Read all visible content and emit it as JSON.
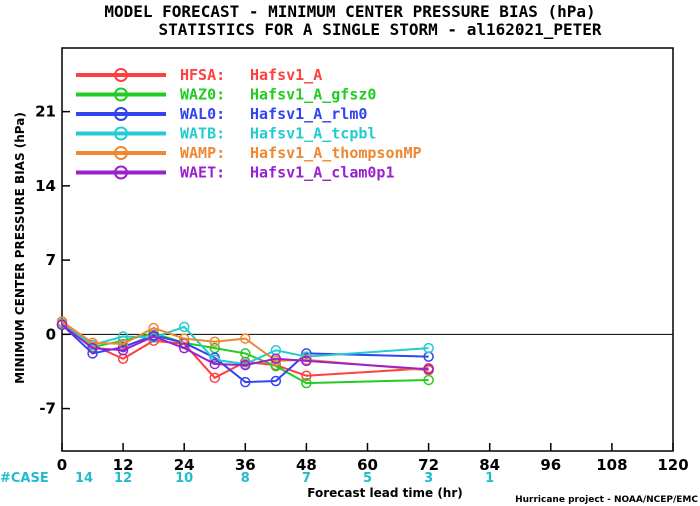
{
  "chart_data": {
    "type": "line",
    "title": "MODEL FORECAST - MINIMUM CENTER PRESSURE BIAS (hPa)",
    "subtitle": "STATISTICS FOR A SINGLE STORM - al162021_PETER",
    "xlabel": "Forecast lead time (hr)",
    "ylabel": "MINIMUM CENTER PRESSURE BIAS (hPa)",
    "xlim": [
      0,
      120
    ],
    "ylim": [
      -11,
      27
    ],
    "xticks": [
      0,
      12,
      24,
      36,
      48,
      60,
      72,
      84,
      96,
      108,
      120
    ],
    "yticks": [
      -7,
      0,
      7,
      14,
      21
    ],
    "zero_line": true,
    "legend_position": "top-left",
    "x": [
      0,
      6,
      12,
      18,
      24,
      30,
      36,
      42,
      48,
      72
    ],
    "series": [
      {
        "name": "HFSA:",
        "label": "Hafsv1_A",
        "color": "#ff4040",
        "values": [
          1.2,
          -1.0,
          -2.3,
          -0.6,
          -0.9,
          -4.1,
          -2.6,
          -2.9,
          -3.9,
          -3.2
        ]
      },
      {
        "name": "WAZ0:",
        "label": "Hafsv1_A_gfsz0",
        "color": "#22cc22",
        "values": [
          0.9,
          -1.2,
          -0.6,
          0.1,
          -0.8,
          -1.3,
          -1.8,
          -3.0,
          -4.6,
          -4.3
        ]
      },
      {
        "name": "WAL0:",
        "label": "Hafsv1_A_rlm0",
        "color": "#3344ee",
        "values": [
          0.9,
          -1.8,
          -1.2,
          -0.1,
          -0.8,
          -2.2,
          -4.5,
          -4.4,
          -1.8,
          -2.1
        ]
      },
      {
        "name": "WATB:",
        "label": "Hafsv1_A_tcpbl",
        "color": "#22ccd0",
        "values": [
          1.0,
          -1.0,
          -0.2,
          -0.3,
          0.7,
          -2.4,
          -2.8,
          -1.5,
          -2.1,
          -1.3
        ]
      },
      {
        "name": "WAMP:",
        "label": "Hafsv1_A_thompsonMP",
        "color": "#ee8833",
        "values": [
          1.2,
          -0.8,
          -0.9,
          0.6,
          -0.4,
          -0.7,
          -0.4,
          -2.5,
          -2.4,
          -3.4
        ]
      },
      {
        "name": "WAET:",
        "label": "Hafsv1_A_clam0p1",
        "color": "#9922cc",
        "values": [
          0.9,
          -1.3,
          -1.5,
          -0.2,
          -1.3,
          -2.8,
          -2.9,
          -2.3,
          -2.5,
          -3.3
        ]
      }
    ],
    "cases": {
      "label": "#CASE",
      "x": [
        0,
        12,
        24,
        36,
        48,
        60,
        72,
        84
      ],
      "values": [
        "14",
        "12",
        "10",
        "8",
        "7",
        "5",
        "3",
        "1"
      ]
    },
    "credit": "Hurricane project - NOAA/NCEP/EMC"
  }
}
